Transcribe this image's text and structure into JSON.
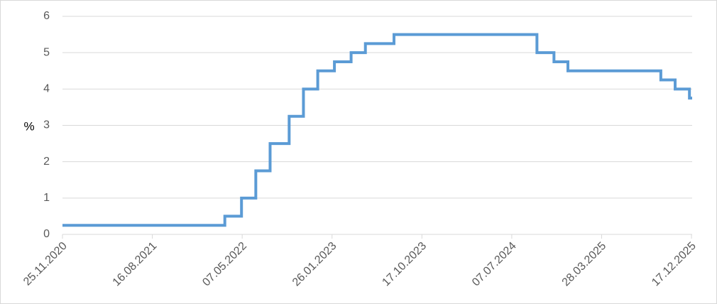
{
  "chart_data": {
    "type": "step",
    "y_label": "%",
    "x": [
      "25.11.2020",
      "17.03.2022",
      "05.05.2022",
      "16.06.2022",
      "28.07.2022",
      "22.09.2022",
      "03.11.2022",
      "15.12.2022",
      "02.02.2023",
      "23.03.2023",
      "04.05.2023",
      "27.07.2023",
      "19.09.2024",
      "08.11.2024",
      "19.12.2024",
      "18.09.2025",
      "30.10.2025",
      "11.12.2025",
      "19.12.2025"
    ],
    "values": [
      0.25,
      0.5,
      1.0,
      1.75,
      2.5,
      3.25,
      4.0,
      4.5,
      4.75,
      5.0,
      5.25,
      5.5,
      5.0,
      4.75,
      4.5,
      4.25,
      4.0,
      3.75,
      3.75
    ],
    "color": "#5b9bd5",
    "xlim": [
      "25.11.2020",
      "19.12.2025"
    ],
    "xticks": [
      "25.11.2020",
      "16.08.2021",
      "07.05.2022",
      "26.01.2023",
      "17.10.2023",
      "07.07.2024",
      "28.03.2025",
      "17.12.2025"
    ],
    "ylim": [
      0,
      6
    ],
    "yticks": [
      0,
      1,
      2,
      3,
      4,
      5,
      6
    ],
    "grid": true
  }
}
